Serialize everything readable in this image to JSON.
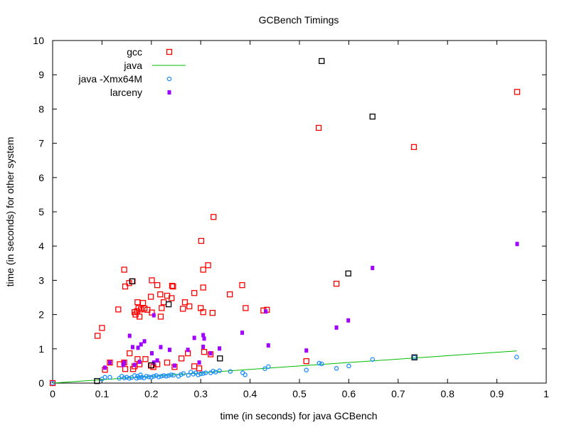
{
  "chart_data": {
    "type": "scatter",
    "title": "GCBench Timings",
    "xlabel": "time (in seconds) for java GCBench",
    "ylabel": "time (in seconds) for other system",
    "xlim": [
      0,
      1
    ],
    "ylim": [
      0,
      10
    ],
    "xticks": [
      "0",
      "0.1",
      "0.2",
      "0.3",
      "0.4",
      "0.5",
      "0.6",
      "0.7",
      "0.8",
      "0.9",
      "1"
    ],
    "yticks": [
      "0",
      "1",
      "2",
      "3",
      "4",
      "5",
      "6",
      "7",
      "8",
      "9",
      "10"
    ],
    "grid": false,
    "legend": "top-left",
    "series": [
      {
        "name": "gcc",
        "marker": "square",
        "color": "#ff0000",
        "points": [
          [
            0,
            0
          ],
          [
            0.091,
            1.38
          ],
          [
            0.1,
            1.61
          ],
          [
            0.133,
            2.15
          ],
          [
            0.145,
            3.31
          ],
          [
            0.147,
            2.82
          ],
          [
            0.155,
            2.92
          ],
          [
            0.162,
            2.97
          ],
          [
            0.166,
            2.07
          ],
          [
            0.168,
            2.0
          ],
          [
            0.171,
            2.1
          ],
          [
            0.172,
            2.36
          ],
          [
            0.174,
            2.19
          ],
          [
            0.176,
            1.94
          ],
          [
            0.179,
            2.15
          ],
          [
            0.183,
            2.34
          ],
          [
            0.186,
            2.18
          ],
          [
            0.192,
            2.14
          ],
          [
            0.199,
            2.52
          ],
          [
            0.201,
            3.0
          ],
          [
            0.201,
            2.06
          ],
          [
            0.212,
            2.86
          ],
          [
            0.218,
            2.59
          ],
          [
            0.219,
            1.94
          ],
          [
            0.221,
            2.19
          ],
          [
            0.225,
            2.36
          ],
          [
            0.232,
            2.55
          ],
          [
            0.241,
            2.48
          ],
          [
            0.242,
            2.84
          ],
          [
            0.244,
            2.82
          ],
          [
            0.264,
            2.17
          ],
          [
            0.268,
            2.36
          ],
          [
            0.277,
            2.24
          ],
          [
            0.287,
            2.63
          ],
          [
            0.3,
            2.19
          ],
          [
            0.301,
            4.15
          ],
          [
            0.305,
            3.31
          ],
          [
            0.305,
            2.79
          ],
          [
            0.305,
            2.07
          ],
          [
            0.315,
            3.44
          ],
          [
            0.324,
            2.05
          ],
          [
            0.326,
            4.85
          ],
          [
            0.359,
            2.59
          ],
          [
            0.384,
            2.86
          ],
          [
            0.391,
            2.19
          ],
          [
            0.427,
            2.12
          ],
          [
            0.434,
            2.14
          ],
          [
            0.539,
            7.45
          ],
          [
            0.575,
            2.9
          ],
          [
            0.732,
            6.89
          ],
          [
            0.941,
            8.5
          ],
          [
            0.106,
            0.39
          ],
          [
            0.116,
            0.6
          ],
          [
            0.136,
            0.55
          ],
          [
            0.145,
            0.6
          ],
          [
            0.147,
            0.41
          ],
          [
            0.156,
            0.87
          ],
          [
            0.163,
            0.41
          ],
          [
            0.166,
            0.49
          ],
          [
            0.172,
            0.7
          ],
          [
            0.176,
            0.55
          ],
          [
            0.188,
            0.7
          ],
          [
            0.199,
            0.51
          ],
          [
            0.204,
            0.47
          ],
          [
            0.212,
            0.55
          ],
          [
            0.232,
            0.6
          ],
          [
            0.247,
            0.47
          ],
          [
            0.261,
            0.72
          ],
          [
            0.274,
            0.87
          ],
          [
            0.287,
            0.49
          ],
          [
            0.297,
            0.43
          ],
          [
            0.307,
            0.91
          ],
          [
            0.32,
            0.84
          ],
          [
            0.514,
            0.64
          ]
        ]
      },
      {
        "name": "java",
        "marker": "line",
        "color": "#00bb00",
        "points": [
          [
            0,
            0
          ],
          [
            0.94,
            0.94
          ]
        ]
      },
      {
        "name": "java -Xmx64M",
        "marker": "circle",
        "color": "#1a8cff",
        "points": [
          [
            0,
            0
          ],
          [
            0.1,
            0.12
          ],
          [
            0.106,
            0.17
          ],
          [
            0.116,
            0.17
          ],
          [
            0.135,
            0.14
          ],
          [
            0.14,
            0.2
          ],
          [
            0.145,
            0.15
          ],
          [
            0.15,
            0.17
          ],
          [
            0.155,
            0.14
          ],
          [
            0.16,
            0.16
          ],
          [
            0.166,
            0.22
          ],
          [
            0.17,
            0.14
          ],
          [
            0.172,
            0.2
          ],
          [
            0.175,
            0.16
          ],
          [
            0.178,
            0.24
          ],
          [
            0.18,
            0.17
          ],
          [
            0.185,
            0.15
          ],
          [
            0.19,
            0.2
          ],
          [
            0.195,
            0.18
          ],
          [
            0.2,
            0.17
          ],
          [
            0.205,
            0.2
          ],
          [
            0.21,
            0.22
          ],
          [
            0.215,
            0.18
          ],
          [
            0.22,
            0.2
          ],
          [
            0.225,
            0.22
          ],
          [
            0.23,
            0.2
          ],
          [
            0.235,
            0.22
          ],
          [
            0.24,
            0.24
          ],
          [
            0.245,
            0.23
          ],
          [
            0.255,
            0.2
          ],
          [
            0.26,
            0.25
          ],
          [
            0.265,
            0.28
          ],
          [
            0.275,
            0.23
          ],
          [
            0.28,
            0.32
          ],
          [
            0.285,
            0.26
          ],
          [
            0.29,
            0.3
          ],
          [
            0.295,
            0.24
          ],
          [
            0.3,
            0.27
          ],
          [
            0.305,
            0.28
          ],
          [
            0.31,
            0.3
          ],
          [
            0.32,
            0.3
          ],
          [
            0.325,
            0.35
          ],
          [
            0.33,
            0.32
          ],
          [
            0.338,
            0.36
          ],
          [
            0.36,
            0.34
          ],
          [
            0.385,
            0.3
          ],
          [
            0.39,
            0.24
          ],
          [
            0.43,
            0.42
          ],
          [
            0.437,
            0.48
          ],
          [
            0.514,
            0.38
          ],
          [
            0.54,
            0.58
          ],
          [
            0.545,
            0.56
          ],
          [
            0.575,
            0.43
          ],
          [
            0.6,
            0.5
          ],
          [
            0.648,
            0.69
          ],
          [
            0.733,
            0.75
          ],
          [
            0.94,
            0.76
          ]
        ]
      },
      {
        "name": "larceny",
        "marker": "dot",
        "color": "#a000ff",
        "points": [
          [
            0.106,
            0.45
          ],
          [
            0.116,
            0.6
          ],
          [
            0.143,
            0.53
          ],
          [
            0.145,
            0.6
          ],
          [
            0.156,
            1.38
          ],
          [
            0.162,
            1.05
          ],
          [
            0.166,
            0.53
          ],
          [
            0.173,
            1.03
          ],
          [
            0.176,
            0.62
          ],
          [
            0.179,
            1.13
          ],
          [
            0.186,
            1.22
          ],
          [
            0.201,
            0.87
          ],
          [
            0.205,
            1.98
          ],
          [
            0.205,
            0.6
          ],
          [
            0.212,
            0.66
          ],
          [
            0.219,
            1.05
          ],
          [
            0.237,
            0.97
          ],
          [
            0.247,
            0.51
          ],
          [
            0.274,
            0.97
          ],
          [
            0.287,
            1.32
          ],
          [
            0.297,
            0.6
          ],
          [
            0.305,
            1.4
          ],
          [
            0.305,
            1.06
          ],
          [
            0.307,
            1.3
          ],
          [
            0.32,
            0.87
          ],
          [
            0.338,
            1.01
          ],
          [
            0.384,
            1.47
          ],
          [
            0.432,
            2.09
          ],
          [
            0.437,
            1.1
          ],
          [
            0.514,
            0.95
          ],
          [
            0.575,
            1.62
          ],
          [
            0.599,
            1.83
          ],
          [
            0.648,
            3.36
          ],
          [
            0.941,
            4.06
          ]
        ]
      },
      {
        "marker": "square",
        "color": "#000000",
        "points": [
          [
            0.09,
            0.06
          ],
          [
            0.161,
            2.97
          ],
          [
            0.2,
            0.52
          ],
          [
            0.235,
            2.3
          ],
          [
            0.339,
            0.72
          ],
          [
            0.545,
            9.4
          ],
          [
            0.599,
            3.2
          ],
          [
            0.648,
            7.78
          ],
          [
            0.733,
            0.75
          ]
        ]
      }
    ]
  }
}
